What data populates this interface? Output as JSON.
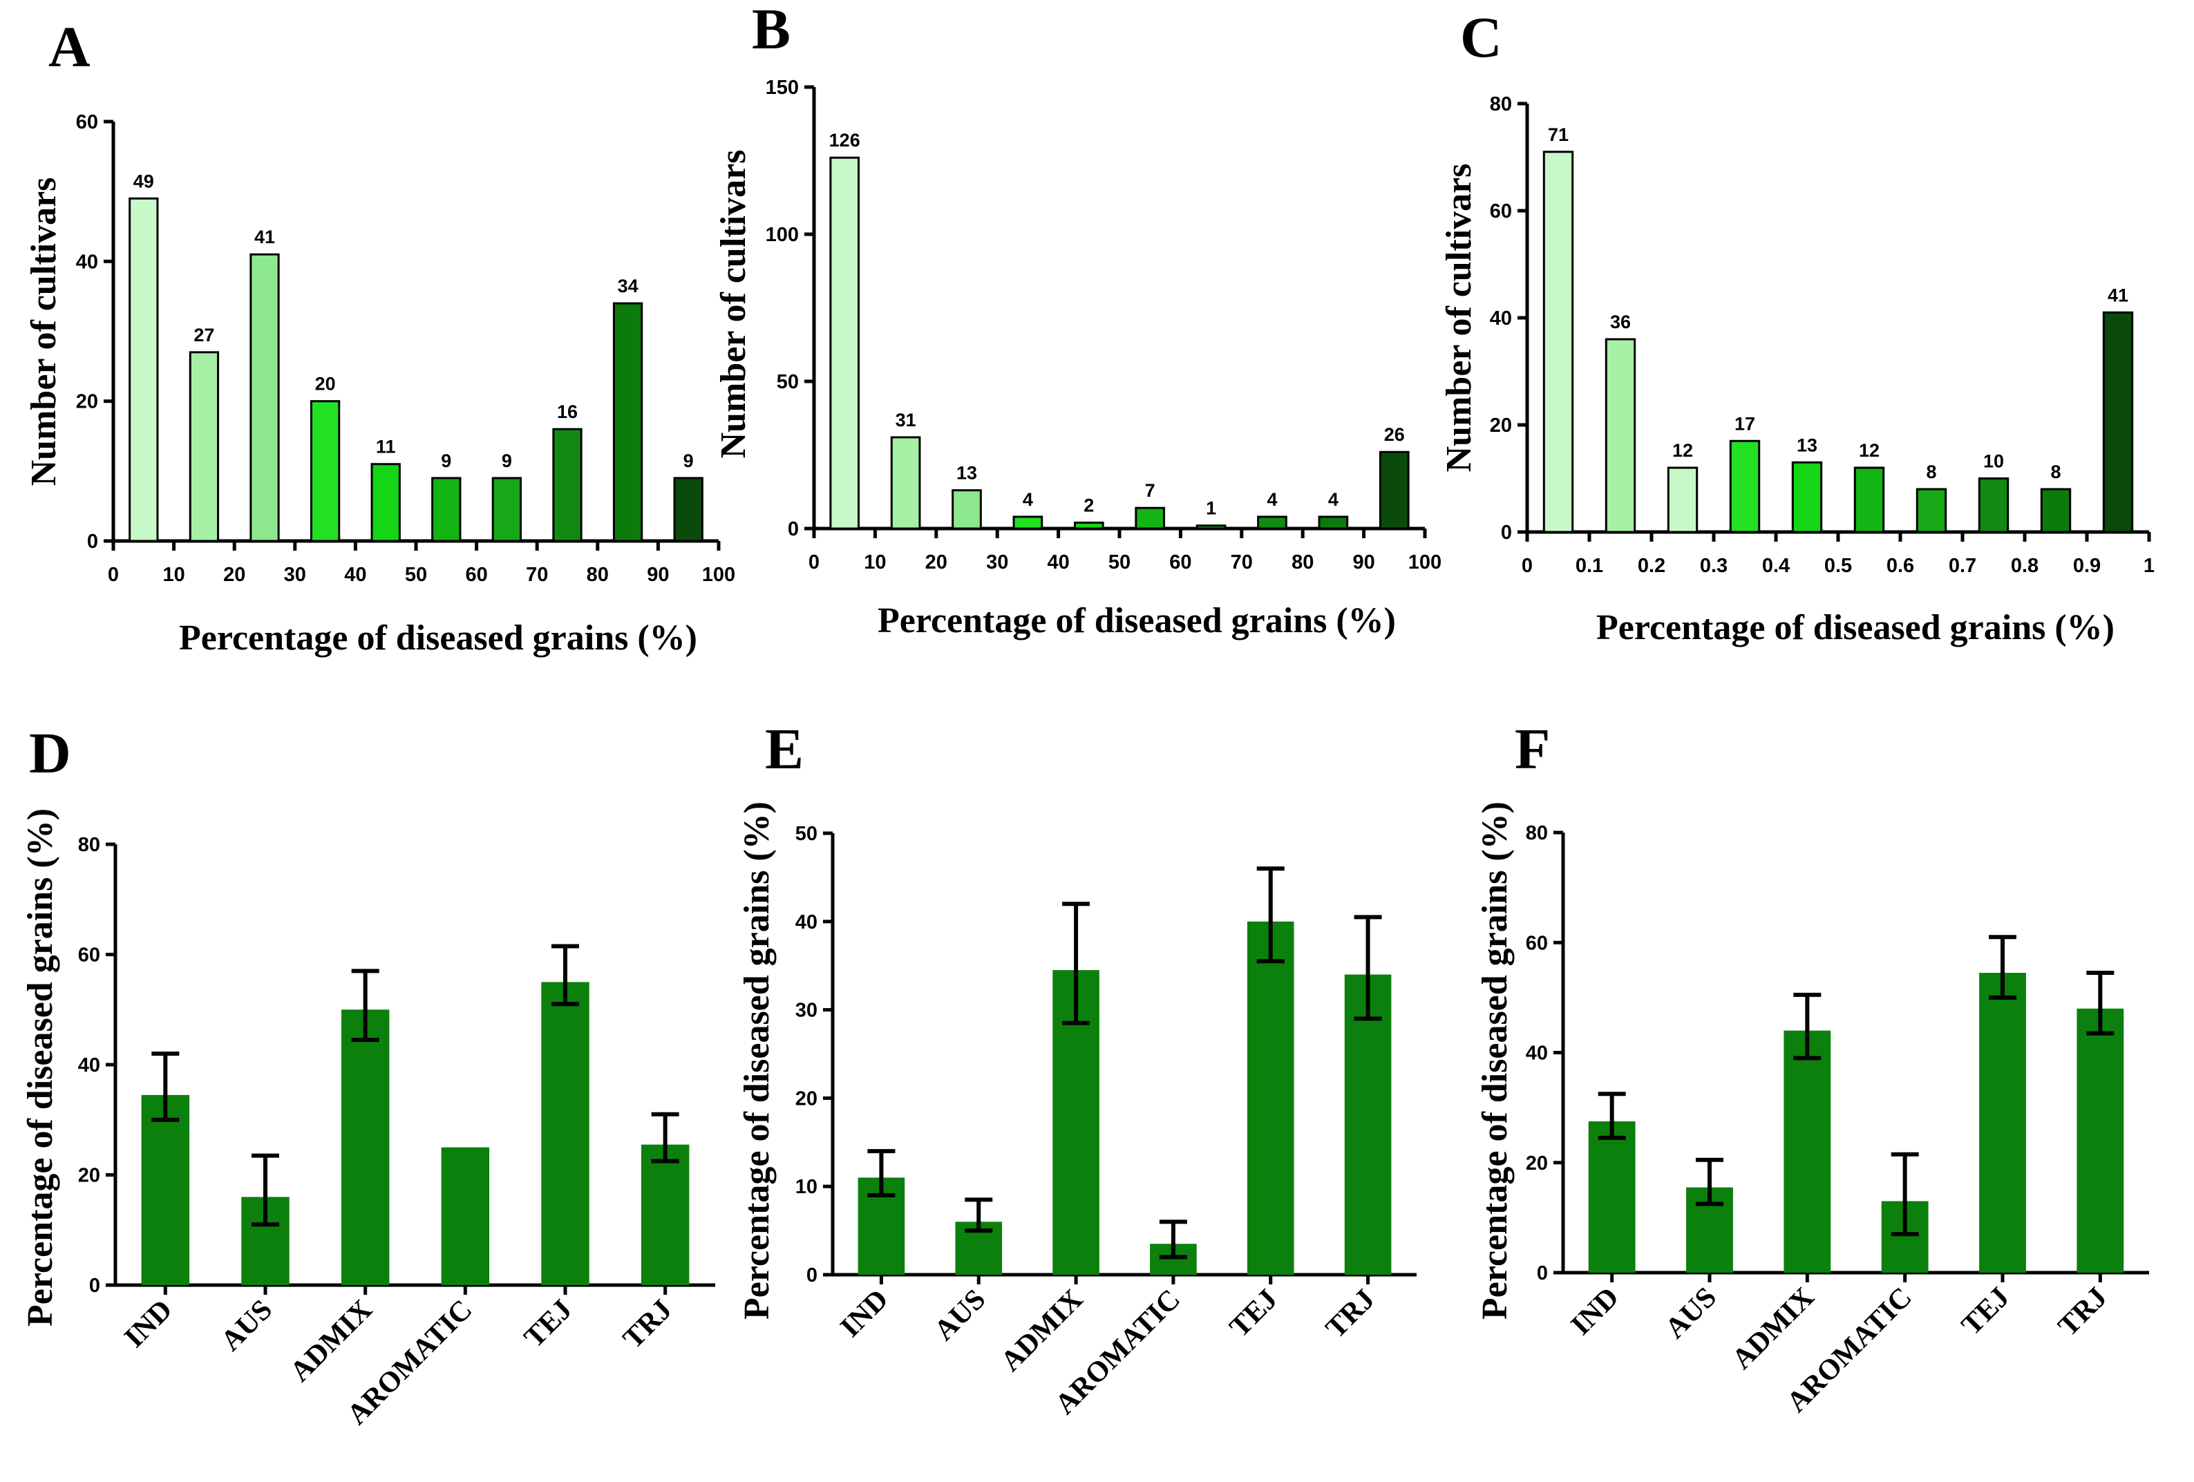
{
  "chart_data": [
    {
      "panel": "A",
      "type": "bar",
      "ylabel": "Number of cultivars",
      "xlabel": "Percentage of diseased grains (%)",
      "ylim": [
        0,
        60
      ],
      "yticks": [
        "0",
        "20",
        "40",
        "60"
      ],
      "xlim": [
        0,
        100
      ],
      "xticks": [
        "0",
        "10",
        "20",
        "30",
        "40",
        "50",
        "60",
        "70",
        "80",
        "90",
        "100"
      ],
      "bin_centers": [
        5,
        15,
        25,
        35,
        45,
        55,
        65,
        75,
        85,
        95
      ],
      "values": [
        49,
        27,
        41,
        20,
        11,
        9,
        9,
        16,
        34,
        9
      ],
      "data_labels": [
        "49",
        "27",
        "41",
        "20",
        "11",
        "9",
        "9",
        "16",
        "34",
        "9"
      ],
      "colors": [
        "#c8f7c8",
        "#a6f0a6",
        "#8ee88e",
        "#22e022",
        "#14d614",
        "#12b512",
        "#16a816",
        "#128a12",
        "#0c7a0c",
        "#0a4a0a"
      ]
    },
    {
      "panel": "B",
      "type": "bar",
      "ylabel": "Number of cultivars",
      "xlabel": "Percentage of diseased grains (%)",
      "ylim": [
        0,
        150
      ],
      "yticks": [
        "0",
        "50",
        "100",
        "150"
      ],
      "xlim": [
        0,
        100
      ],
      "xticks": [
        "0",
        "10",
        "20",
        "30",
        "40",
        "50",
        "60",
        "70",
        "80",
        "90",
        "100"
      ],
      "bin_centers": [
        5,
        15,
        25,
        35,
        45,
        55,
        65,
        75,
        85,
        95
      ],
      "values": [
        126,
        31,
        13,
        4,
        2,
        7,
        1,
        4,
        4,
        26
      ],
      "data_labels": [
        "126",
        "31",
        "13",
        "4",
        "2",
        "7",
        "1",
        "4",
        "4",
        "26"
      ],
      "colors": [
        "#c8f7c8",
        "#a6f0a6",
        "#8ee88e",
        "#22e022",
        "#14d614",
        "#12b512",
        "#16a816",
        "#128a12",
        "#0c7a0c",
        "#0a4a0a"
      ]
    },
    {
      "panel": "C",
      "type": "bar",
      "ylabel": "Number of cultivars",
      "xlabel": "Percentage of diseased grains (%)",
      "ylim": [
        0,
        80
      ],
      "yticks": [
        "0",
        "20",
        "40",
        "60",
        "80"
      ],
      "xlim": [
        0,
        1
      ],
      "xticks": [
        "0",
        "0.1",
        "0.2",
        "0.3",
        "0.4",
        "0.5",
        "0.6",
        "0.7",
        "0.8",
        "0.9",
        "1"
      ],
      "bin_centers": [
        0.05,
        0.15,
        0.25,
        0.35,
        0.45,
        0.55,
        0.65,
        0.75,
        0.85,
        0.95
      ],
      "values": [
        71,
        36,
        12,
        17,
        13,
        12,
        8,
        10,
        8,
        41
      ],
      "data_labels": [
        "71",
        "36",
        "12",
        "17",
        "13",
        "12",
        "8",
        "10",
        "8",
        "41"
      ],
      "colors": [
        "#c8f7c8",
        "#a6f0a6",
        "#c8f7c8",
        "#22e022",
        "#14d614",
        "#12b512",
        "#16a816",
        "#128a12",
        "#0c7a0c",
        "#0a4a0a"
      ]
    },
    {
      "panel": "D",
      "type": "bar",
      "ylabel": "Percentage of diseased grains (%)",
      "ylim": [
        0,
        80
      ],
      "yticks": [
        "0",
        "20",
        "40",
        "60",
        "80"
      ],
      "categories": [
        "IND",
        "AUS",
        "ADMIX",
        "AROMATIC",
        "TEJ",
        "TRJ"
      ],
      "values": [
        34.5,
        16,
        50,
        25,
        55,
        25.5
      ],
      "error_low": [
        30,
        11,
        44.5,
        25,
        51,
        22.5
      ],
      "error_high": [
        42,
        23.5,
        57,
        25,
        61.5,
        31
      ],
      "color": "#0c800c"
    },
    {
      "panel": "E",
      "type": "bar",
      "ylabel": "Percentage of diseased grains (%)",
      "ylim": [
        0,
        50
      ],
      "yticks": [
        "0",
        "10",
        "20",
        "30",
        "40",
        "50"
      ],
      "categories": [
        "IND",
        "AUS",
        "ADMIX",
        "AROMATIC",
        "TEJ",
        "TRJ"
      ],
      "values": [
        11,
        6,
        34.5,
        3.5,
        40,
        34
      ],
      "error_low": [
        9,
        5,
        28.5,
        2,
        35.5,
        29
      ],
      "error_high": [
        14,
        8.5,
        42,
        6,
        46,
        40.5
      ],
      "color": "#0c800c"
    },
    {
      "panel": "F",
      "type": "bar",
      "ylabel": "Percentage of diseased grains (%)",
      "ylim": [
        0,
        80
      ],
      "yticks": [
        "0",
        "20",
        "40",
        "60",
        "80"
      ],
      "categories": [
        "IND",
        "AUS",
        "ADMIX",
        "AROMATIC",
        "TEJ",
        "TRJ"
      ],
      "values": [
        27.5,
        15.5,
        44,
        13,
        54.5,
        48
      ],
      "error_low": [
        24.5,
        12.5,
        39,
        7,
        50,
        43.5
      ],
      "error_high": [
        32.5,
        20.5,
        50.5,
        21.5,
        61,
        54.5
      ],
      "color": "#0c800c"
    }
  ]
}
